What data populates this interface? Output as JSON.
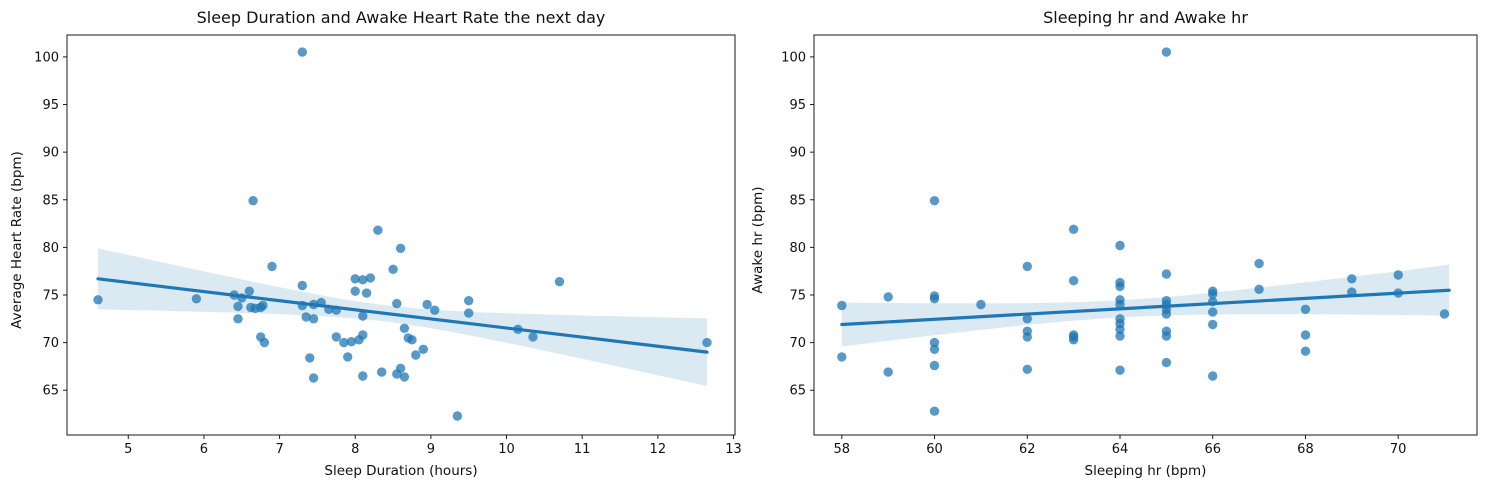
{
  "figure": {
    "background": "#ffffff",
    "accent_color": "#1f77b4"
  },
  "chart_data": [
    {
      "type": "scatter",
      "title": "Sleep Duration and Awake Heart Rate the next day",
      "xlabel": "Sleep Duration (hours)",
      "ylabel": "Average Heart Rate (bpm)",
      "xlim": [
        4.19,
        13.02
      ],
      "ylim": [
        60.3,
        102.3
      ],
      "xticks": [
        5,
        6,
        7,
        8,
        9,
        10,
        11,
        12,
        13
      ],
      "yticks": [
        65,
        70,
        75,
        80,
        85,
        90,
        95,
        100
      ],
      "grid": false,
      "legend": null,
      "marker_color": "#1f77b4",
      "line_color": "#1f77b4",
      "band_color": "#1f77b4",
      "points": [
        [
          4.6,
          74.5
        ],
        [
          5.9,
          74.6
        ],
        [
          6.4,
          75.0
        ],
        [
          6.45,
          73.8
        ],
        [
          6.45,
          72.5
        ],
        [
          6.5,
          74.7
        ],
        [
          6.6,
          75.4
        ],
        [
          6.62,
          73.7
        ],
        [
          6.65,
          84.9
        ],
        [
          6.68,
          73.6
        ],
        [
          6.75,
          73.7
        ],
        [
          6.78,
          73.9
        ],
        [
          6.75,
          70.6
        ],
        [
          6.8,
          70.0
        ],
        [
          6.9,
          78.0
        ],
        [
          7.3,
          100.5
        ],
        [
          7.3,
          76.0
        ],
        [
          7.3,
          73.9
        ],
        [
          7.35,
          72.7
        ],
        [
          7.4,
          68.4
        ],
        [
          7.45,
          66.3
        ],
        [
          7.45,
          74.0
        ],
        [
          7.45,
          72.5
        ],
        [
          7.55,
          74.2
        ],
        [
          7.65,
          73.5
        ],
        [
          7.75,
          73.4
        ],
        [
          7.75,
          70.6
        ],
        [
          7.85,
          70.0
        ],
        [
          7.9,
          68.5
        ],
        [
          7.95,
          70.1
        ],
        [
          8.0,
          76.7
        ],
        [
          8.0,
          75.4
        ],
        [
          8.05,
          70.3
        ],
        [
          8.1,
          76.6
        ],
        [
          8.1,
          72.8
        ],
        [
          8.1,
          70.8
        ],
        [
          8.1,
          66.5
        ],
        [
          8.15,
          75.2
        ],
        [
          8.2,
          76.8
        ],
        [
          8.3,
          81.8
        ],
        [
          8.35,
          66.9
        ],
        [
          8.5,
          77.7
        ],
        [
          8.55,
          74.1
        ],
        [
          8.55,
          66.7
        ],
        [
          8.6,
          79.9
        ],
        [
          8.6,
          67.3
        ],
        [
          8.65,
          71.5
        ],
        [
          8.65,
          66.4
        ],
        [
          8.7,
          70.5
        ],
        [
          8.75,
          70.3
        ],
        [
          8.8,
          68.7
        ],
        [
          8.9,
          69.3
        ],
        [
          8.95,
          74.0
        ],
        [
          9.05,
          73.4
        ],
        [
          9.35,
          62.3
        ],
        [
          9.5,
          74.4
        ],
        [
          9.5,
          73.1
        ],
        [
          10.15,
          71.4
        ],
        [
          10.35,
          70.6
        ],
        [
          10.7,
          76.4
        ],
        [
          12.65,
          70.0
        ]
      ],
      "trend_line": {
        "x": [
          4.6,
          12.65
        ],
        "y": [
          76.7,
          69.0
        ]
      },
      "ci_band": {
        "center_x": 8.4,
        "a": 0.72,
        "b": 0.66
      }
    },
    {
      "type": "scatter",
      "title": "Sleeping hr and Awake hr",
      "xlabel": "Sleeping hr (bpm)",
      "ylabel": "Awake hr (bpm)",
      "xlim": [
        57.4,
        71.7
      ],
      "ylim": [
        60.3,
        102.3
      ],
      "xticks": [
        58,
        60,
        62,
        64,
        66,
        68,
        70
      ],
      "yticks": [
        65,
        70,
        75,
        80,
        85,
        90,
        95,
        100
      ],
      "grid": false,
      "legend": null,
      "marker_color": "#1f77b4",
      "line_color": "#1f77b4",
      "band_color": "#1f77b4",
      "points": [
        [
          58,
          73.9
        ],
        [
          58,
          68.5
        ],
        [
          59,
          74.8
        ],
        [
          59,
          66.9
        ],
        [
          60,
          84.9
        ],
        [
          60,
          74.9
        ],
        [
          60,
          74.6
        ],
        [
          60,
          70.0
        ],
        [
          60,
          69.3
        ],
        [
          60,
          67.6
        ],
        [
          60,
          62.8
        ],
        [
          61,
          74.0
        ],
        [
          62,
          78.0
        ],
        [
          62,
          72.5
        ],
        [
          62,
          71.2
        ],
        [
          62,
          70.6
        ],
        [
          62,
          67.2
        ],
        [
          63,
          81.9
        ],
        [
          63,
          76.5
        ],
        [
          63,
          70.8
        ],
        [
          63,
          70.6
        ],
        [
          63,
          70.3
        ],
        [
          64,
          80.2
        ],
        [
          64,
          76.3
        ],
        [
          64,
          75.9
        ],
        [
          64,
          74.5
        ],
        [
          64,
          74.0
        ],
        [
          64,
          72.5
        ],
        [
          64,
          72.0
        ],
        [
          64,
          71.4
        ],
        [
          64,
          70.7
        ],
        [
          64,
          67.1
        ],
        [
          65,
          100.5
        ],
        [
          65,
          77.2
        ],
        [
          65,
          74.4
        ],
        [
          65,
          74.0
        ],
        [
          65,
          73.5
        ],
        [
          65,
          73.0
        ],
        [
          65,
          71.2
        ],
        [
          65,
          70.7
        ],
        [
          65,
          67.9
        ],
        [
          66,
          75.4
        ],
        [
          66,
          75.1
        ],
        [
          66,
          74.3
        ],
        [
          66,
          73.2
        ],
        [
          66,
          71.9
        ],
        [
          66,
          66.5
        ],
        [
          67,
          78.3
        ],
        [
          67,
          75.6
        ],
        [
          68,
          73.5
        ],
        [
          68,
          70.8
        ],
        [
          68,
          69.1
        ],
        [
          69,
          76.7
        ],
        [
          69,
          75.3
        ],
        [
          70,
          77.1
        ],
        [
          70,
          75.2
        ],
        [
          71,
          73.0
        ]
      ],
      "trend_line": {
        "x": [
          58,
          71.1
        ],
        "y": [
          71.9,
          75.5
        ]
      },
      "ci_band": {
        "center_x": 64.0,
        "a": 0.81,
        "b": 0.125
      }
    }
  ]
}
